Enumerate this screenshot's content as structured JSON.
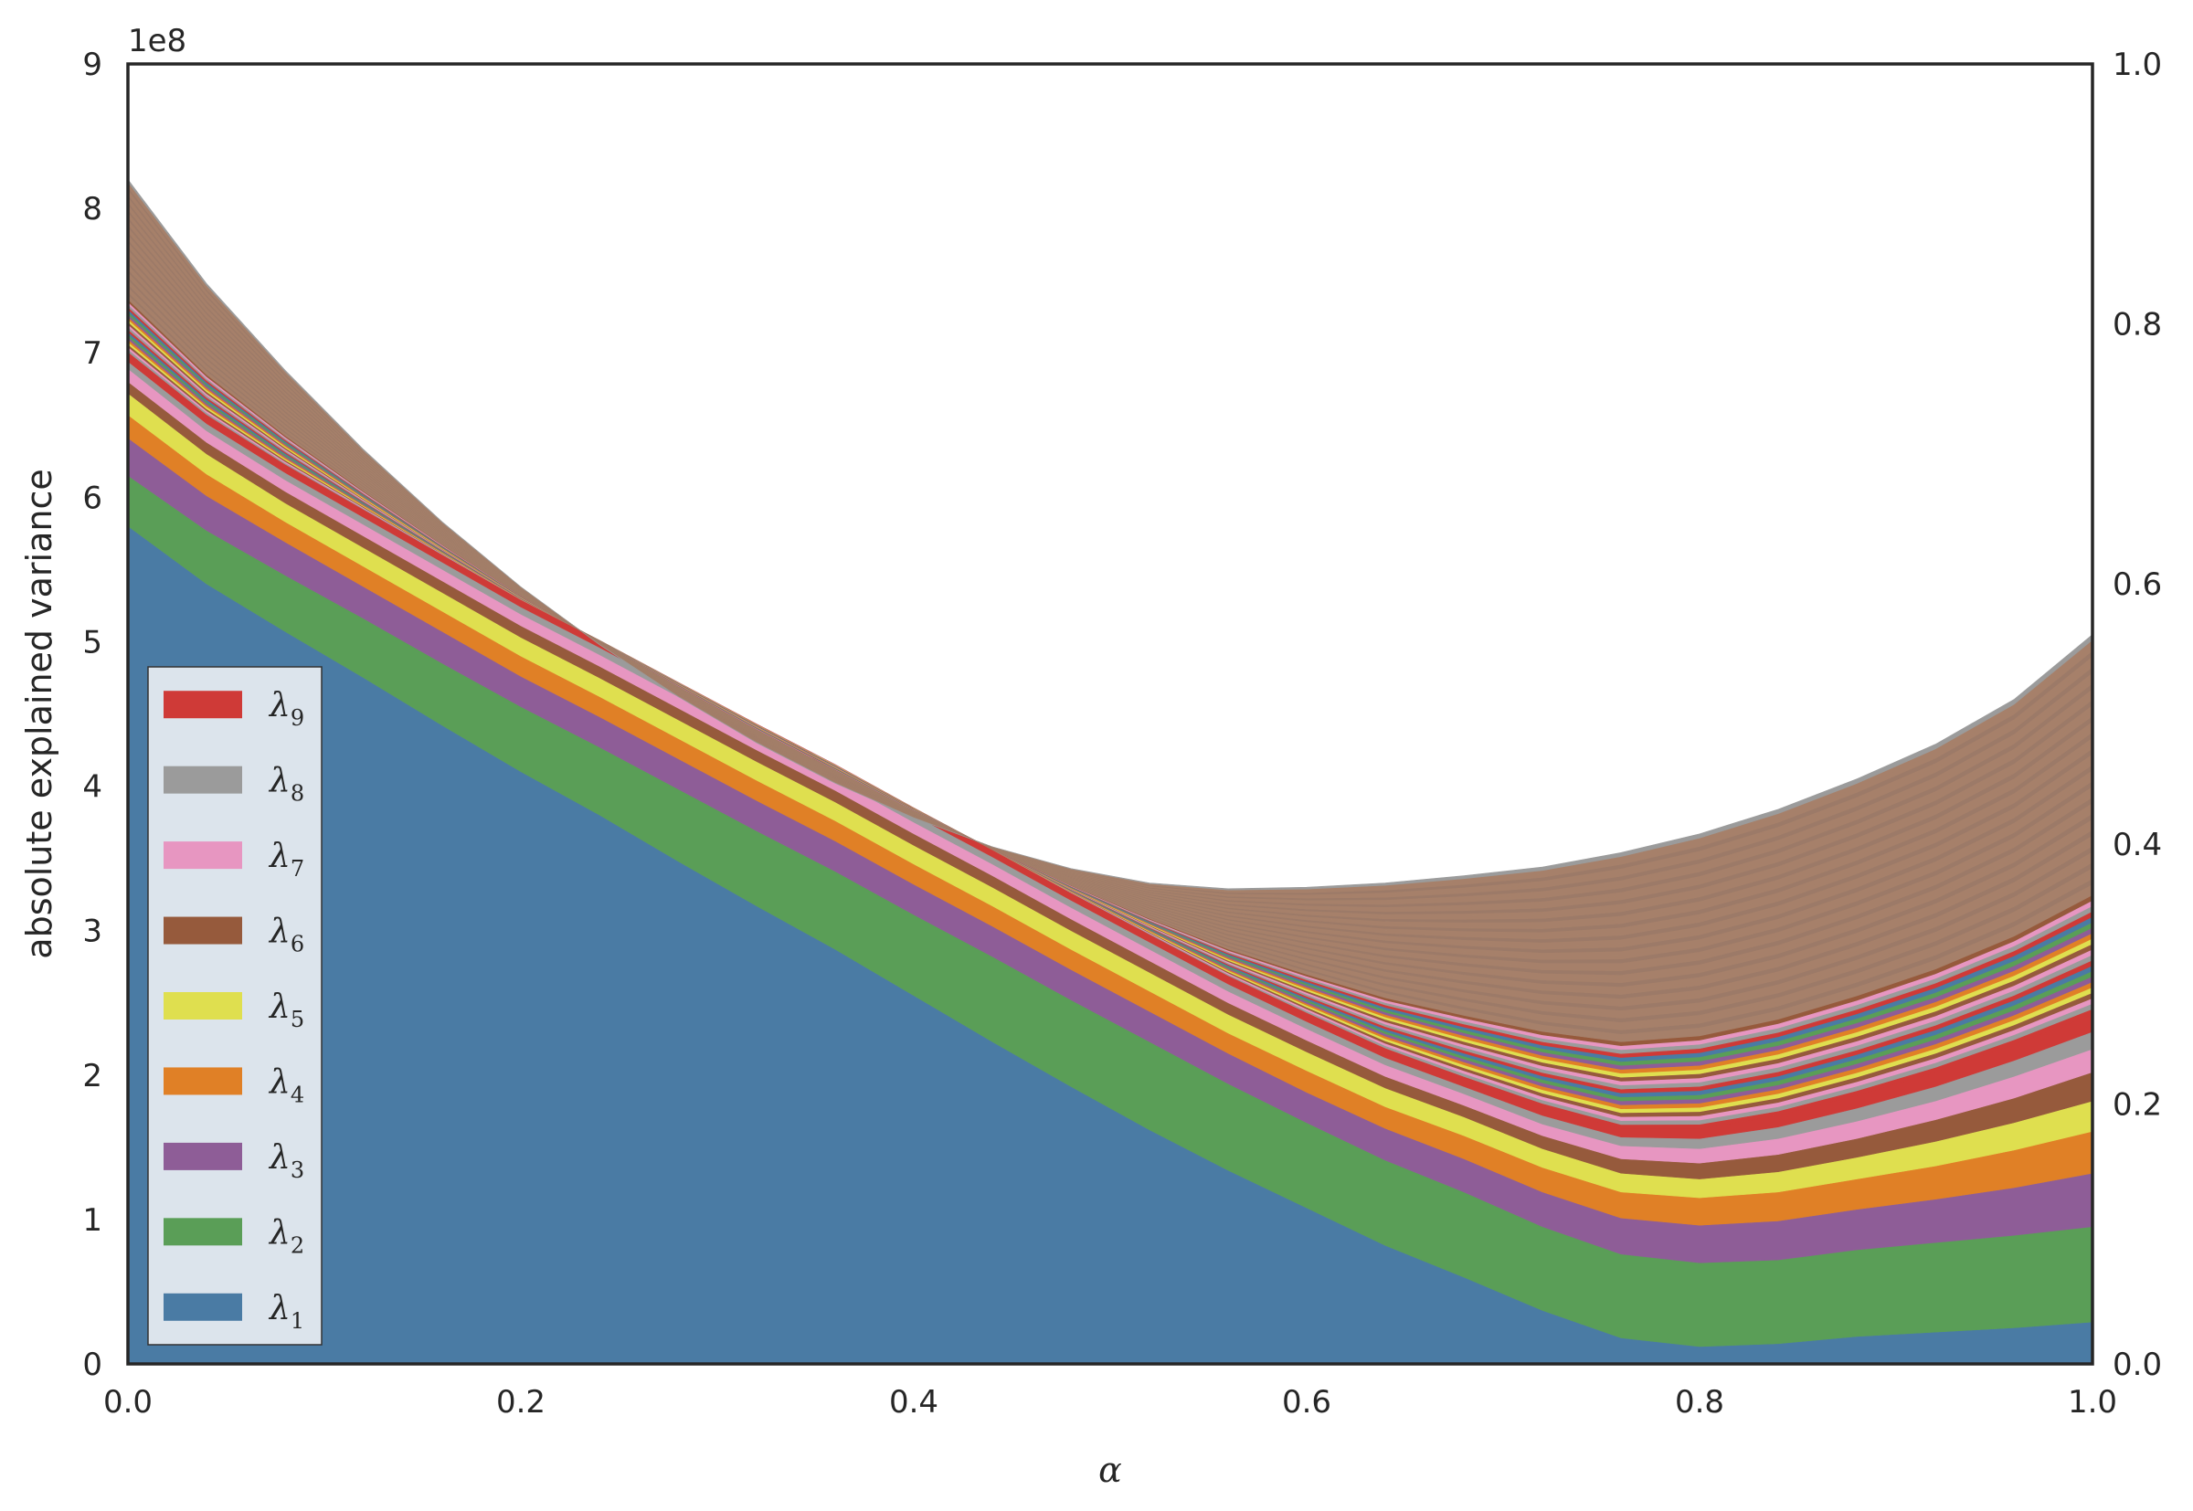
{
  "chart_data": {
    "type": "area",
    "stacked": true,
    "title": "",
    "xlabel": "α",
    "ylabel": "absolute explained variance",
    "y_offset_text": "1e8",
    "xlim": [
      0.0,
      1.0
    ],
    "ylim": [
      0,
      9
    ],
    "y2lim": [
      0.0,
      1.0
    ],
    "grid": false,
    "legend_position": "lower-left",
    "x": [
      0.0,
      0.04,
      0.08,
      0.12,
      0.16,
      0.2,
      0.24,
      0.28,
      0.32,
      0.36,
      0.4,
      0.44,
      0.48,
      0.52,
      0.56,
      0.6,
      0.64,
      0.68,
      0.72,
      0.76,
      0.8,
      0.84,
      0.88,
      0.92,
      0.96,
      1.0
    ],
    "x_ticks": [
      "0.0",
      "0.2",
      "0.4",
      "0.6",
      "0.8",
      "1.0"
    ],
    "y_ticks": [
      "0",
      "1",
      "2",
      "3",
      "4",
      "5",
      "6",
      "7",
      "8",
      "9"
    ],
    "y2_ticks": [
      "0.0",
      "0.2",
      "0.4",
      "0.6",
      "0.8",
      "1.0"
    ],
    "total_envelope": [
      8.2,
      7.48,
      6.88,
      6.33,
      5.83,
      5.38,
      4.98,
      4.62,
      4.3,
      4.02,
      3.78,
      3.58,
      3.43,
      3.33,
      3.29,
      3.3,
      3.33,
      3.38,
      3.44,
      3.54,
      3.67,
      3.84,
      4.05,
      4.29,
      4.6,
      5.05
    ],
    "tail_colors": [
      "#cf3a37",
      "#9b9b9b",
      "#e796c1",
      "#965a3c",
      "#dfdf4f",
      "#e08026",
      "#8e5d97",
      "#5a9e57",
      "#4a7ba4"
    ],
    "series": [
      {
        "name": "λ1",
        "label": "λ",
        "sub": "1",
        "color": "#4a7ba4",
        "values": [
          5.8,
          5.4,
          5.07,
          4.75,
          4.42,
          4.1,
          3.8,
          3.48,
          3.17,
          2.87,
          2.55,
          2.23,
          1.92,
          1.62,
          1.34,
          1.08,
          0.82,
          0.6,
          0.37,
          0.18,
          0.12,
          0.14,
          0.19,
          0.22,
          0.25,
          0.29
        ]
      },
      {
        "name": "λ2",
        "label": "λ",
        "sub": "2",
        "color": "#5a9e57",
        "values": [
          0.35,
          0.37,
          0.39,
          0.41,
          0.43,
          0.45,
          0.47,
          0.5,
          0.52,
          0.54,
          0.56,
          0.59,
          0.6,
          0.61,
          0.6,
          0.59,
          0.59,
          0.59,
          0.58,
          0.58,
          0.58,
          0.58,
          0.6,
          0.62,
          0.64,
          0.66
        ]
      },
      {
        "name": "λ3",
        "label": "λ",
        "sub": "3",
        "color": "#8e5d97",
        "values": [
          0.26,
          0.24,
          0.23,
          0.22,
          0.22,
          0.21,
          0.21,
          0.21,
          0.21,
          0.21,
          0.21,
          0.21,
          0.21,
          0.21,
          0.21,
          0.21,
          0.22,
          0.23,
          0.24,
          0.25,
          0.26,
          0.27,
          0.28,
          0.3,
          0.33,
          0.37
        ]
      },
      {
        "name": "λ4",
        "label": "λ",
        "sub": "4",
        "color": "#e08026",
        "values": [
          0.16,
          0.15,
          0.14,
          0.14,
          0.14,
          0.14,
          0.14,
          0.14,
          0.14,
          0.14,
          0.14,
          0.14,
          0.14,
          0.14,
          0.14,
          0.15,
          0.15,
          0.16,
          0.17,
          0.18,
          0.19,
          0.2,
          0.21,
          0.23,
          0.26,
          0.29
        ]
      },
      {
        "name": "λ5",
        "label": "λ",
        "sub": "5",
        "color": "#dfdf4f",
        "values": [
          0.15,
          0.14,
          0.13,
          0.13,
          0.13,
          0.13,
          0.13,
          0.13,
          0.13,
          0.13,
          0.13,
          0.13,
          0.13,
          0.13,
          0.13,
          0.13,
          0.13,
          0.13,
          0.13,
          0.13,
          0.13,
          0.14,
          0.15,
          0.17,
          0.19,
          0.21
        ]
      },
      {
        "name": "λ6",
        "label": "λ",
        "sub": "6",
        "color": "#965a3c",
        "values": [
          0.08,
          0.08,
          0.08,
          0.08,
          0.08,
          0.08,
          0.08,
          0.08,
          0.08,
          0.08,
          0.08,
          0.08,
          0.08,
          0.08,
          0.08,
          0.08,
          0.08,
          0.08,
          0.09,
          0.1,
          0.11,
          0.12,
          0.13,
          0.15,
          0.17,
          0.2
        ]
      },
      {
        "name": "λ7",
        "label": "λ",
        "sub": "7",
        "color": "#e796c1",
        "values": [
          0.09,
          0.08,
          0.08,
          0.08,
          0.08,
          0.08,
          0.08,
          0.08,
          0.08,
          0.08,
          0.08,
          0.08,
          0.08,
          0.08,
          0.08,
          0.08,
          0.08,
          0.08,
          0.08,
          0.09,
          0.1,
          0.11,
          0.12,
          0.13,
          0.15,
          0.16
        ]
      },
      {
        "name": "λ8",
        "label": "λ",
        "sub": "8",
        "color": "#9b9b9b",
        "values": [
          0.05,
          0.05,
          0.05,
          0.05,
          0.05,
          0.05,
          0.05,
          0.05,
          0.05,
          0.05,
          0.05,
          0.05,
          0.05,
          0.05,
          0.05,
          0.05,
          0.05,
          0.05,
          0.06,
          0.06,
          0.07,
          0.08,
          0.09,
          0.1,
          0.11,
          0.12
        ]
      },
      {
        "name": "λ9",
        "label": "λ",
        "sub": "9",
        "color": "#cf3a37",
        "values": [
          0.05,
          0.05,
          0.05,
          0.05,
          0.05,
          0.05,
          0.05,
          0.05,
          0.05,
          0.05,
          0.05,
          0.05,
          0.05,
          0.05,
          0.05,
          0.05,
          0.05,
          0.05,
          0.06,
          0.06,
          0.07,
          0.08,
          0.09,
          0.1,
          0.11,
          0.12
        ]
      }
    ]
  }
}
